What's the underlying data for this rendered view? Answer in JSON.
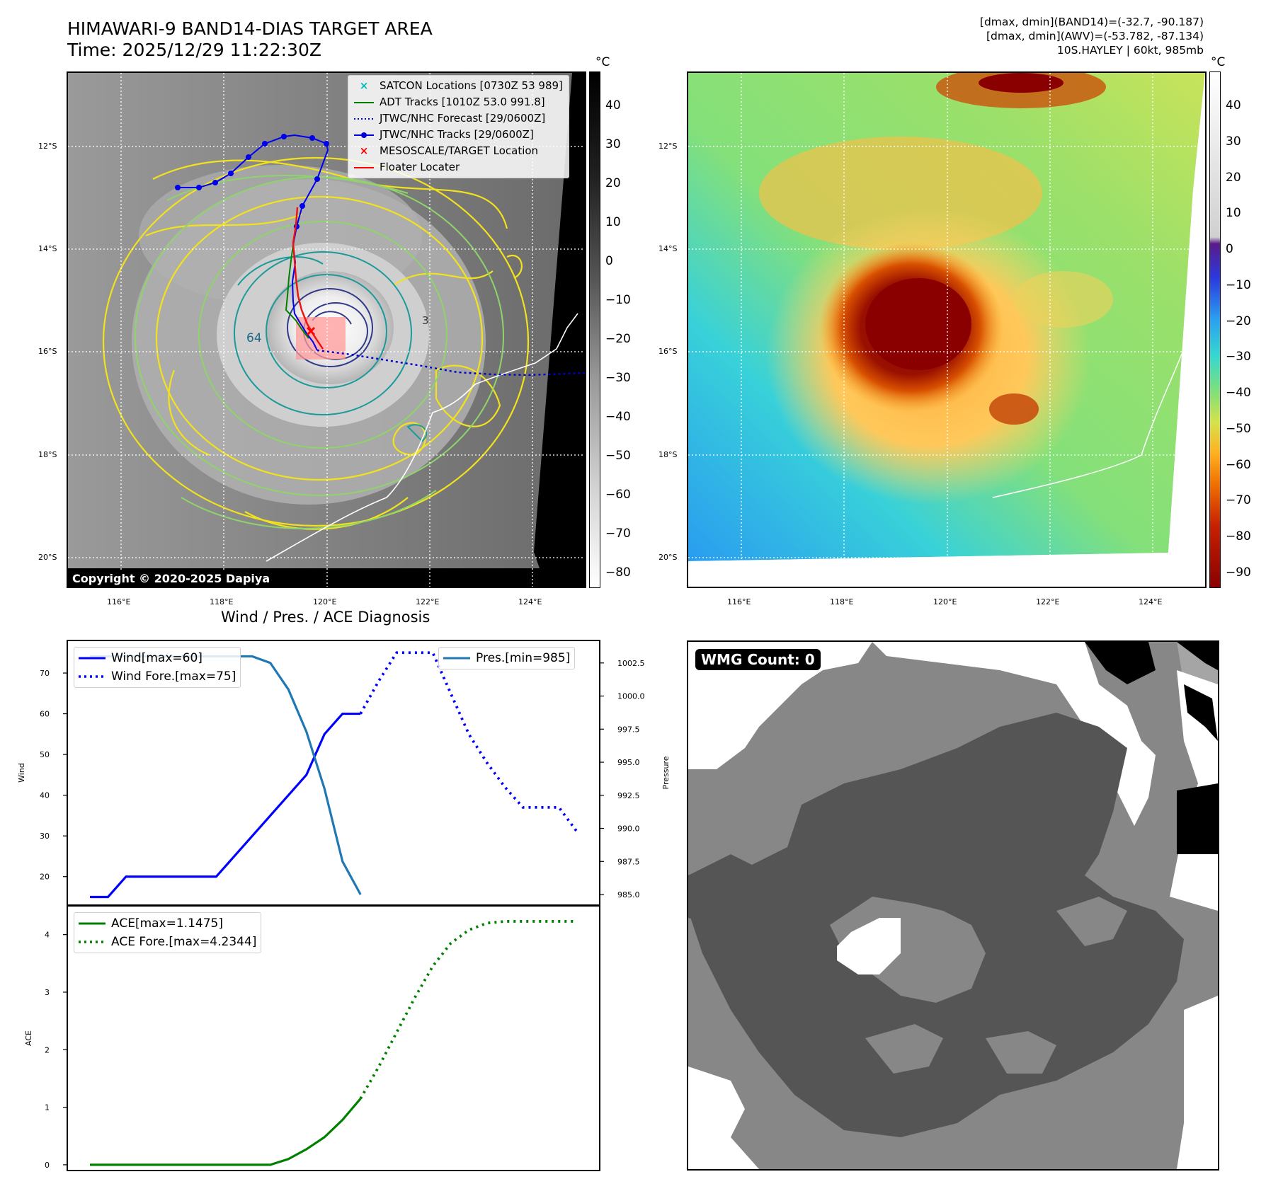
{
  "header": {
    "title_line1": "HIMAWARI-9 BAND14-DIAS TARGET AREA",
    "title_line2": "Time: 2025/12/29 11:22:30Z",
    "info_line1": "[dmax, dmin](BAND14)=(-32.7, -90.187)",
    "info_line2": "[dmax, dmin](AWV)=(-53.782, -87.134)",
    "info_line3": "10S.HAYLEY | 60kt, 985mb"
  },
  "map_axes": {
    "lat_labels": [
      "12°S",
      "14°S",
      "16°S",
      "18°S",
      "20°S"
    ],
    "lon_labels": [
      "116°E",
      "118°E",
      "120°E",
      "122°E",
      "124°E"
    ]
  },
  "ir_map": {
    "legend": [
      {
        "label": "SATCON Locations [0730Z 53 989]",
        "color": "#00bcbc"
      },
      {
        "label": "ADT Tracks [1010Z 53.0 991.8]",
        "color": "#008000"
      },
      {
        "label": "JTWC/NHC Forecast [29/0600Z]",
        "color": "#0000cc"
      },
      {
        "label": "JTWC/NHC Tracks [29/0600Z]",
        "color": "#0000dd"
      },
      {
        "label": "MESOSCALE/TARGET Location",
        "color": "#ff0000"
      },
      {
        "label": "Floater Locater",
        "color": "#ff0000"
      }
    ],
    "contour_label_64": "64",
    "contour_label_3": "3",
    "copyright": "Copyright © 2020-2025 Dapiya",
    "colorbar_unit": "°C",
    "colorbar_ticks": [
      "40",
      "30",
      "20",
      "10",
      "0",
      "−10",
      "−20",
      "−30",
      "−40",
      "−50",
      "−60",
      "−70",
      "−80"
    ]
  },
  "awv_map": {
    "colorbar_unit": "°C",
    "colorbar_ticks": [
      "40",
      "30",
      "20",
      "10",
      "0",
      "−10",
      "−20",
      "−30",
      "−40",
      "−50",
      "−60",
      "−70",
      "−80",
      "−90"
    ]
  },
  "diagnosis": {
    "title": "Wind / Pres. / ACE Diagnosis",
    "wind_ylabel": "Wind",
    "pres_ylabel": "Pressure",
    "ace_ylabel": "ACE",
    "legend_wind": "Wind[max=60]",
    "legend_wind_fore": "Wind Fore.[max=75]",
    "legend_pres": "Pres.[min=985]",
    "legend_ace": "ACE[max=1.1475]",
    "legend_ace_fore": "ACE Fore.[max=4.2344]"
  },
  "wmg": {
    "label": "WMG Count: 0"
  },
  "chart_data": [
    {
      "type": "line",
      "title": "Wind / Pres. / ACE Diagnosis",
      "ylabel": "Wind",
      "ylim": [
        13,
        78
      ],
      "y_ticks": [
        20,
        30,
        40,
        50,
        60,
        70
      ],
      "x": [
        0,
        1,
        2,
        3,
        4,
        5,
        6,
        7,
        8,
        9,
        10,
        11,
        12,
        13,
        14,
        15,
        16,
        17,
        18,
        19,
        20,
        21,
        22,
        23,
        24,
        25,
        26,
        27
      ],
      "series": [
        {
          "name": "Wind[max=60]",
          "style": "solid",
          "color": "#0000ff",
          "x": [
            0,
            1,
            2,
            3,
            4,
            5,
            6,
            7,
            8,
            9,
            10,
            11,
            12,
            13,
            14,
            15
          ],
          "values": [
            15,
            15,
            20,
            20,
            20,
            20,
            20,
            20,
            25,
            30,
            35,
            40,
            45,
            55,
            60,
            60
          ]
        },
        {
          "name": "Wind Fore.[max=75]",
          "style": "dotted",
          "color": "#0000ff",
          "x": [
            15,
            16,
            17,
            18,
            19,
            20,
            21,
            22,
            23,
            24,
            25,
            26,
            27
          ],
          "values": [
            60,
            68,
            75,
            75,
            75,
            65,
            55,
            48,
            42,
            37,
            37,
            37,
            31
          ]
        }
      ]
    },
    {
      "type": "line",
      "ylabel": "Pressure",
      "ylim": [
        984.2,
        1004.2
      ],
      "y_ticks": [
        985.0,
        987.5,
        990.0,
        992.5,
        995.0,
        997.5,
        1000.0,
        1002.5
      ],
      "series": [
        {
          "name": "Pres.[min=985]",
          "style": "solid",
          "color": "#1f77b4",
          "x": [
            0,
            1,
            2,
            3,
            4,
            5,
            6,
            7,
            8,
            9,
            10,
            11,
            12,
            13,
            14,
            15
          ],
          "values": [
            1003,
            1003,
            1003,
            1003,
            1003,
            1003,
            1003,
            1003,
            1003,
            1003,
            1002.5,
            1000.5,
            997.3,
            993,
            987.5,
            985
          ]
        }
      ]
    },
    {
      "type": "line",
      "ylabel": "ACE",
      "ylim": [
        -0.1,
        4.5
      ],
      "y_ticks": [
        0,
        1,
        2,
        3,
        4
      ],
      "series": [
        {
          "name": "ACE[max=1.1475]",
          "style": "solid",
          "color": "#008000",
          "x": [
            0,
            1,
            2,
            3,
            4,
            5,
            6,
            7,
            8,
            9,
            10,
            11,
            12,
            13,
            14,
            15
          ],
          "values": [
            0,
            0,
            0,
            0,
            0,
            0,
            0,
            0,
            0,
            0,
            0,
            0.1,
            0.27,
            0.48,
            0.78,
            1.15
          ]
        },
        {
          "name": "ACE Fore.[max=4.2344]",
          "style": "dotted",
          "color": "#008000",
          "x": [
            15,
            16,
            17,
            18,
            19,
            20,
            21,
            22,
            23,
            24,
            25,
            26,
            27
          ],
          "values": [
            1.15,
            1.7,
            2.3,
            2.9,
            3.45,
            3.85,
            4.08,
            4.2,
            4.23,
            4.23,
            4.23,
            4.23,
            4.23
          ]
        }
      ]
    }
  ]
}
